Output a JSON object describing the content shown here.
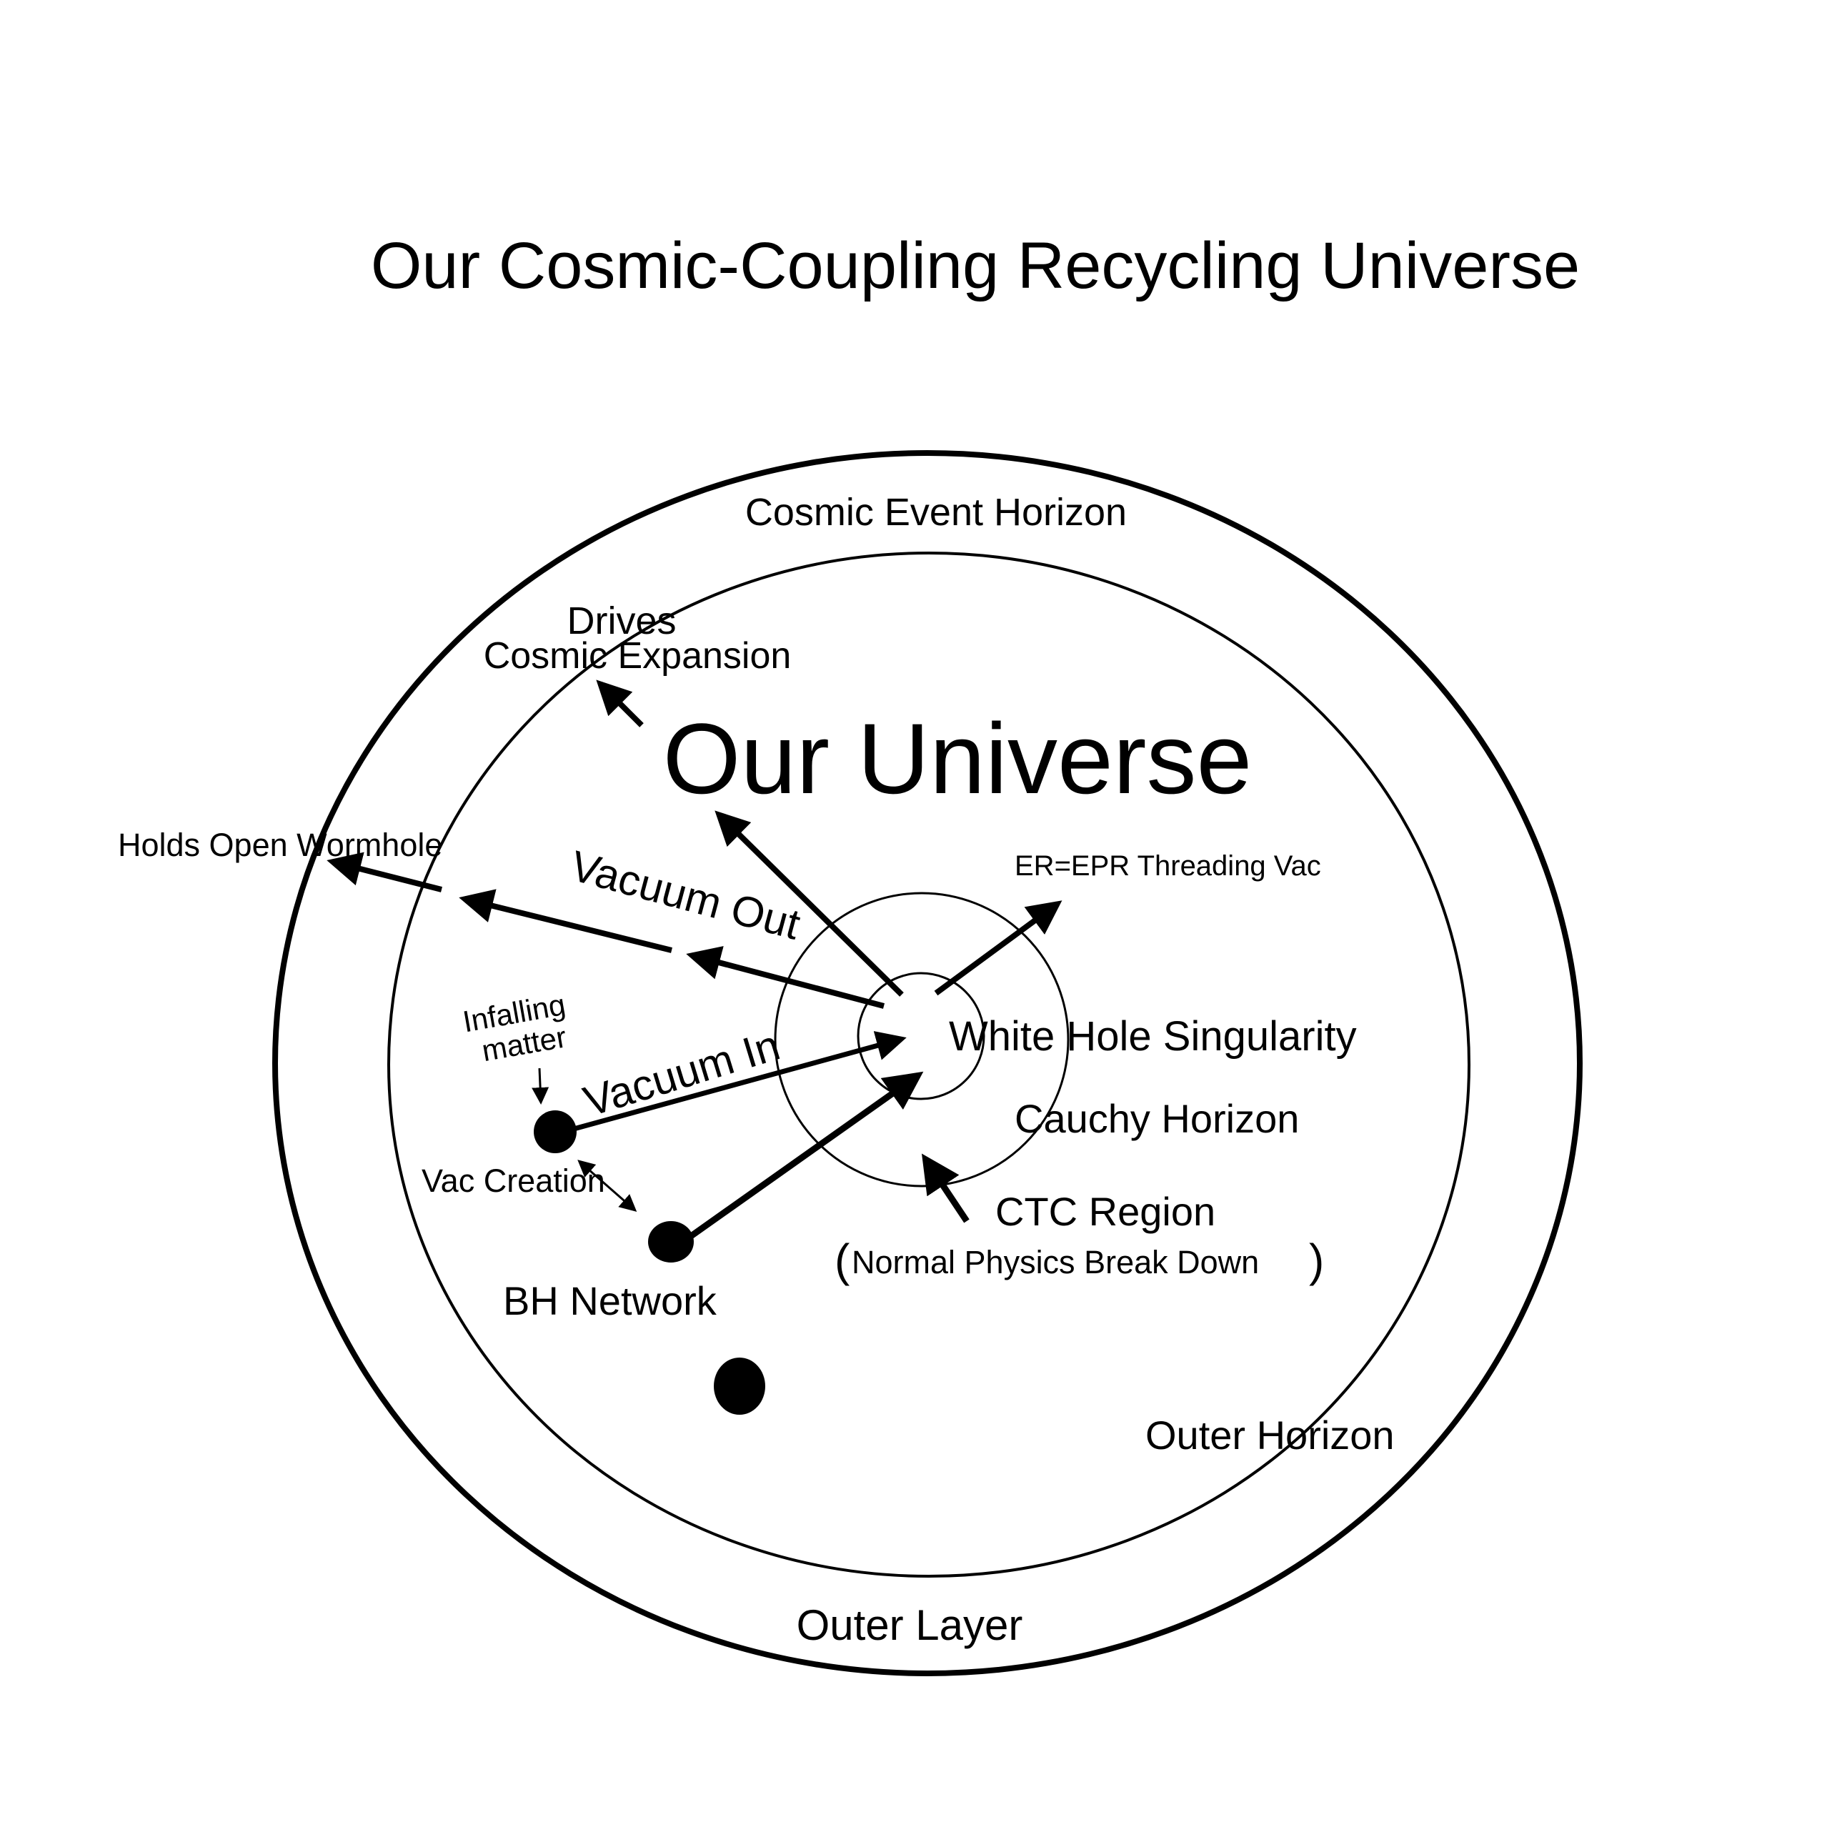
{
  "title": "Our Cosmic-Coupling Recycling Universe",
  "labels": {
    "cosmic_event_horizon": "Cosmic Event Horizon",
    "drives": "Drives",
    "cosmic_expansion": "Cosmic Expansion",
    "our_universe": "Our Universe",
    "holds_open_wormhole": "Holds Open Wormhole",
    "vacuum_out": "Vacuum Out",
    "er_epr": "ER=EPR Threading Vac",
    "infalling_line1": "Infalling",
    "infalling_line2": "matter",
    "vacuum_in": "Vacuum In",
    "white_hole_singularity": "White Hole Singularity",
    "cauchy_horizon": "Cauchy Horizon",
    "vac_creation": "Vac Creation",
    "ctc_region": "CTC Region",
    "normal_physics_open": "(",
    "normal_physics": "Normal Physics Break Down",
    "normal_physics_close": ")",
    "bh_network": "BH Network",
    "outer_horizon": "Outer Horizon",
    "outer_layer": "Outer Layer"
  },
  "colors": {
    "ink": "#000000",
    "background": "#ffffff"
  }
}
